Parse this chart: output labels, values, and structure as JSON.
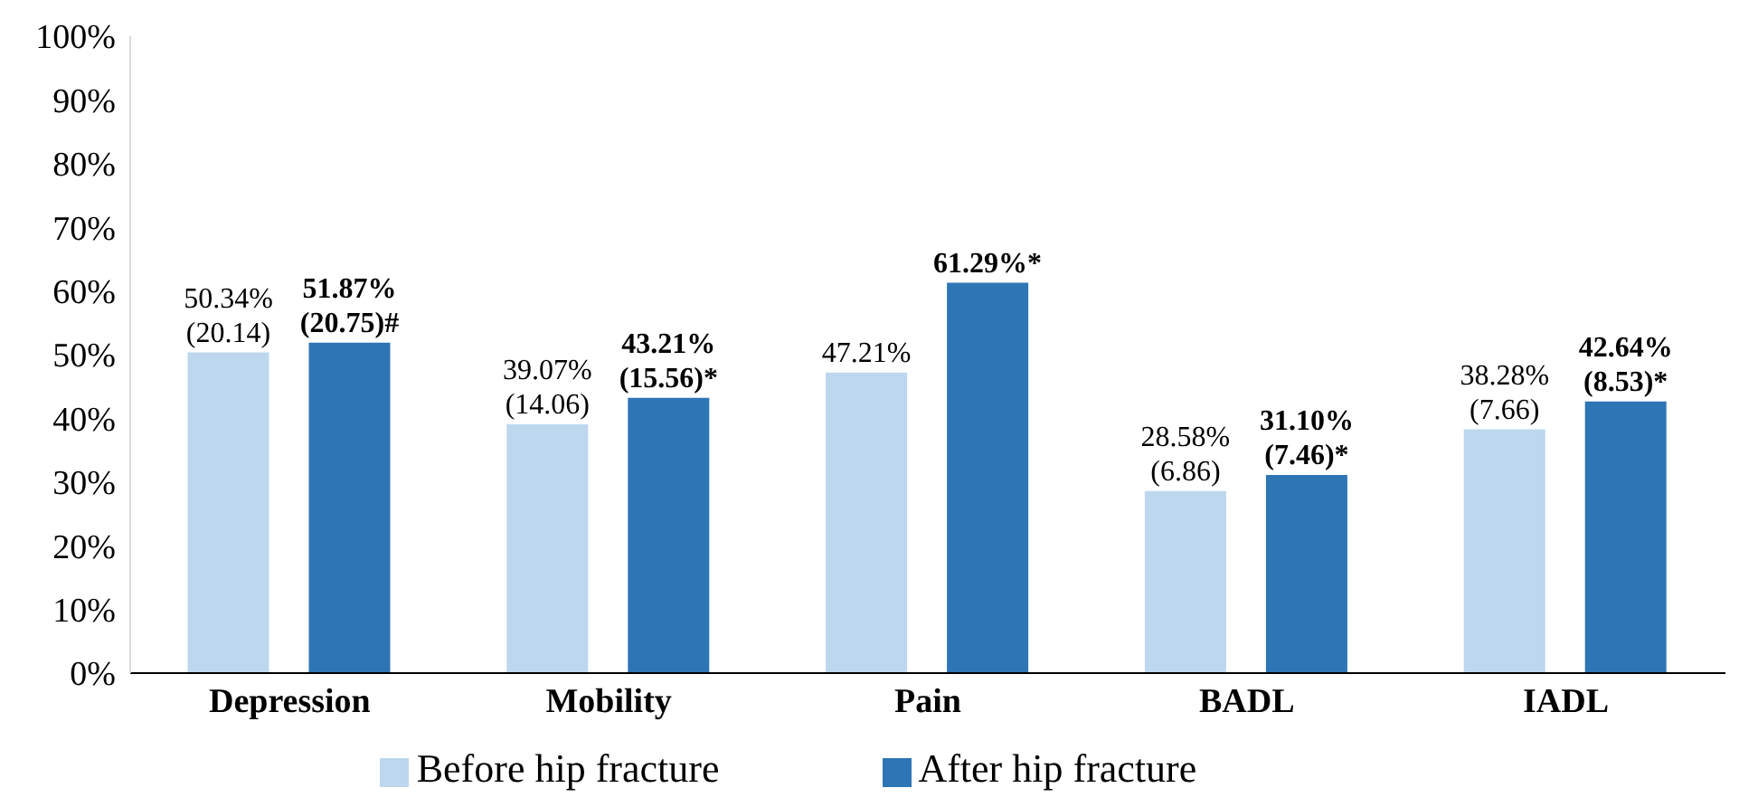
{
  "chart_data": {
    "type": "bar",
    "categories": [
      "Depression",
      "Mobility",
      "Pain",
      "BADL",
      "IADL"
    ],
    "series": [
      {
        "name": "Before hip fracture",
        "color": "#bdd7ee",
        "values": [
          50.34,
          39.07,
          47.21,
          28.58,
          38.28
        ],
        "value_labels": [
          "50.34%\n(20.14)",
          "39.07%\n(14.06)",
          "47.21%",
          "28.58%\n(6.86)",
          "38.28%\n(7.66)"
        ]
      },
      {
        "name": "After hip fracture",
        "color": "#2e75b6",
        "values": [
          51.87,
          43.21,
          61.29,
          31.1,
          42.64
        ],
        "value_labels": [
          "51.87%\n(20.75)#",
          "43.21%\n(15.56)*",
          "61.29%*",
          "31.10%\n(7.46)*",
          "42.64%\n(8.53)*"
        ]
      }
    ],
    "ylim": [
      0,
      100
    ],
    "yticks": [
      {
        "value": 0,
        "label": "0%"
      },
      {
        "value": 10,
        "label": "10%"
      },
      {
        "value": 20,
        "label": "20%"
      },
      {
        "value": 30,
        "label": "30%"
      },
      {
        "value": 40,
        "label": "40%"
      },
      {
        "value": 50,
        "label": "50%"
      },
      {
        "value": 60,
        "label": "60%"
      },
      {
        "value": 70,
        "label": "70%"
      },
      {
        "value": 80,
        "label": "80%"
      },
      {
        "value": 90,
        "label": "90%"
      },
      {
        "value": 100,
        "label": "100%"
      }
    ],
    "grid": false,
    "legend": "bottom"
  }
}
